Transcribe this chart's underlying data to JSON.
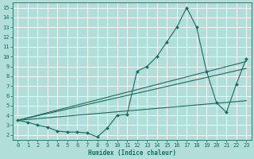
{
  "xlabel": "Humidex (Indice chaleur)",
  "background_color": "#b2ded9",
  "grid_color": "#ffffff",
  "line_color": "#1a6b5e",
  "xlim": [
    -0.5,
    23.5
  ],
  "ylim": [
    1.5,
    15.5
  ],
  "xticks": [
    0,
    1,
    2,
    3,
    4,
    5,
    6,
    7,
    8,
    9,
    10,
    11,
    12,
    13,
    14,
    15,
    16,
    17,
    18,
    19,
    20,
    21,
    22,
    23
  ],
  "yticks": [
    2,
    3,
    4,
    5,
    6,
    7,
    8,
    9,
    10,
    11,
    12,
    13,
    14,
    15
  ],
  "line1_x": [
    0,
    1,
    2,
    3,
    4,
    5,
    6,
    7,
    8,
    9,
    10,
    11,
    12,
    13,
    14,
    15,
    16,
    17,
    18,
    19,
    20,
    21,
    22,
    23
  ],
  "line1_y": [
    3.5,
    3.3,
    3.0,
    2.8,
    2.4,
    2.3,
    2.3,
    2.2,
    1.8,
    2.7,
    4.0,
    4.1,
    8.5,
    9.0,
    10.0,
    11.5,
    13.0,
    15.0,
    13.0,
    8.5,
    5.3,
    4.3,
    7.2,
    9.8
  ],
  "line2_x": [
    0,
    23
  ],
  "line2_y": [
    3.5,
    9.5
  ],
  "line3_x": [
    0,
    23
  ],
  "line3_y": [
    3.5,
    8.8
  ],
  "line4_x": [
    0,
    23
  ],
  "line4_y": [
    3.5,
    5.5
  ]
}
